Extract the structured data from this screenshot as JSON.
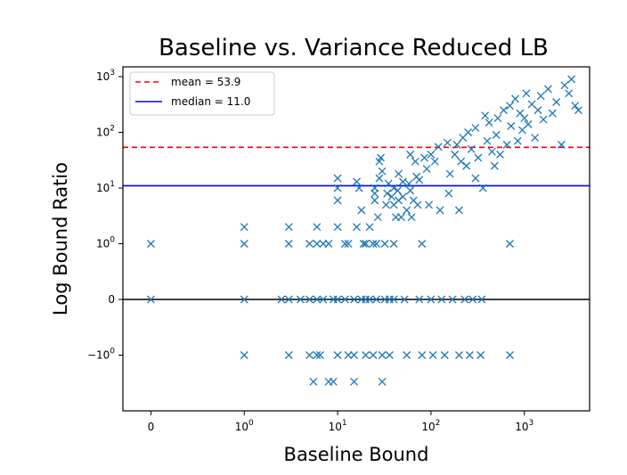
{
  "chart_data": {
    "type": "scatter",
    "title": "Baseline vs. Variance Reduced LB",
    "xlabel": "Baseline Bound",
    "ylabel": "Log Bound Ratio",
    "x_scale": "symlog",
    "y_scale": "symlog",
    "xlim": [
      -0.3,
      5000
    ],
    "ylim": [
      -10,
      1500
    ],
    "x_ticks": [
      {
        "value": 0,
        "label": "0"
      },
      {
        "value": 1,
        "label": "10",
        "exp": "0"
      },
      {
        "value": 10,
        "label": "10",
        "exp": "1"
      },
      {
        "value": 100,
        "label": "10",
        "exp": "2"
      },
      {
        "value": 1000,
        "label": "10",
        "exp": "3"
      }
    ],
    "y_ticks": [
      {
        "value": 1000,
        "label": "10",
        "exp": "3"
      },
      {
        "value": 100,
        "label": "10",
        "exp": "2"
      },
      {
        "value": 10,
        "label": "10",
        "exp": "1"
      },
      {
        "value": 1,
        "label": "10",
        "exp": "0"
      },
      {
        "value": 0,
        "label": "0"
      },
      {
        "value": -1,
        "label": "−10",
        "exp": "0"
      }
    ],
    "reference_lines": [
      {
        "name": "mean = 53.9",
        "value": 53.9,
        "color": "#ff0000",
        "style": "dashed"
      },
      {
        "name": "median = 11.0",
        "value": 11.0,
        "color": "#0000ff",
        "style": "solid"
      },
      {
        "name": "",
        "value": 0,
        "color": "#000000",
        "style": "solid"
      }
    ],
    "legend": {
      "position": "top-left",
      "entries": [
        "mean = 53.9",
        "median = 11.0"
      ]
    },
    "marker": {
      "shape": "x",
      "color": "#1f77b4"
    },
    "series": [
      {
        "points": [
          [
            0,
            1
          ],
          [
            0,
            0
          ],
          [
            1,
            2
          ],
          [
            1,
            1
          ],
          [
            1,
            0
          ],
          [
            1,
            -1
          ],
          [
            2.5,
            0
          ],
          [
            3,
            2
          ],
          [
            3,
            1
          ],
          [
            3,
            -1
          ],
          [
            3,
            0
          ],
          [
            4,
            0
          ],
          [
            5,
            1
          ],
          [
            5,
            0
          ],
          [
            5,
            -1
          ],
          [
            5.5,
            -3
          ],
          [
            6,
            2
          ],
          [
            6,
            1
          ],
          [
            6,
            0
          ],
          [
            6,
            -1
          ],
          [
            6.5,
            -1
          ],
          [
            7,
            1
          ],
          [
            7,
            0
          ],
          [
            8,
            1
          ],
          [
            8,
            -3
          ],
          [
            9,
            -3
          ],
          [
            9,
            0
          ],
          [
            10,
            -1
          ],
          [
            10,
            0
          ],
          [
            10,
            2
          ],
          [
            10,
            10
          ],
          [
            10,
            15
          ],
          [
            10,
            6
          ],
          [
            12,
            1
          ],
          [
            12,
            0
          ],
          [
            13,
            1
          ],
          [
            13,
            -1
          ],
          [
            15,
            0
          ],
          [
            15,
            -3
          ],
          [
            15,
            -1
          ],
          [
            16,
            2
          ],
          [
            16,
            13
          ],
          [
            17,
            10
          ],
          [
            18,
            0
          ],
          [
            18,
            4
          ],
          [
            19,
            1
          ],
          [
            20,
            0
          ],
          [
            20,
            -1
          ],
          [
            20,
            1
          ],
          [
            22,
            2
          ],
          [
            22,
            0
          ],
          [
            24,
            1
          ],
          [
            24,
            -1
          ],
          [
            25,
            8
          ],
          [
            25,
            6
          ],
          [
            25,
            10
          ],
          [
            26,
            1
          ],
          [
            26,
            0
          ],
          [
            27,
            3
          ],
          [
            28,
            15
          ],
          [
            28,
            30
          ],
          [
            29,
            35
          ],
          [
            30,
            -3
          ],
          [
            30,
            -1
          ],
          [
            30,
            20
          ],
          [
            32,
            1
          ],
          [
            32,
            0
          ],
          [
            33,
            5
          ],
          [
            34,
            8
          ],
          [
            35,
            12
          ],
          [
            36,
            -1
          ],
          [
            36,
            0
          ],
          [
            38,
            7
          ],
          [
            40,
            1
          ],
          [
            40,
            0
          ],
          [
            40,
            5
          ],
          [
            40,
            10
          ],
          [
            42,
            3
          ],
          [
            44,
            9
          ],
          [
            45,
            18
          ],
          [
            45,
            6
          ],
          [
            48,
            3
          ],
          [
            50,
            7
          ],
          [
            50,
            13
          ],
          [
            52,
            0
          ],
          [
            55,
            -1
          ],
          [
            55,
            4
          ],
          [
            58,
            12
          ],
          [
            60,
            9
          ],
          [
            60,
            40
          ],
          [
            62,
            3
          ],
          [
            65,
            6
          ],
          [
            68,
            30
          ],
          [
            70,
            16
          ],
          [
            72,
            5
          ],
          [
            75,
            14
          ],
          [
            75,
            0
          ],
          [
            80,
            -1
          ],
          [
            80,
            1
          ],
          [
            85,
            35
          ],
          [
            90,
            22
          ],
          [
            95,
            5
          ],
          [
            100,
            40
          ],
          [
            100,
            0
          ],
          [
            105,
            -1
          ],
          [
            110,
            30
          ],
          [
            120,
            55
          ],
          [
            125,
            4
          ],
          [
            130,
            0
          ],
          [
            140,
            -1
          ],
          [
            150,
            65
          ],
          [
            155,
            8
          ],
          [
            160,
            18
          ],
          [
            170,
            0
          ],
          [
            180,
            40
          ],
          [
            190,
            60
          ],
          [
            200,
            -1
          ],
          [
            200,
            4
          ],
          [
            210,
            30
          ],
          [
            220,
            80
          ],
          [
            230,
            0
          ],
          [
            240,
            25
          ],
          [
            250,
            100
          ],
          [
            260,
            -1
          ],
          [
            270,
            50
          ],
          [
            280,
            0
          ],
          [
            300,
            15
          ],
          [
            300,
            120
          ],
          [
            320,
            35
          ],
          [
            340,
            -1
          ],
          [
            350,
            0
          ],
          [
            360,
            10
          ],
          [
            380,
            200
          ],
          [
            400,
            70
          ],
          [
            420,
            150
          ],
          [
            450,
            45
          ],
          [
            480,
            25
          ],
          [
            500,
            90
          ],
          [
            520,
            180
          ],
          [
            550,
            40
          ],
          [
            600,
            250
          ],
          [
            650,
            60
          ],
          [
            700,
            300
          ],
          [
            700,
            1
          ],
          [
            700,
            -1
          ],
          [
            720,
            130
          ],
          [
            800,
            400
          ],
          [
            850,
            70
          ],
          [
            900,
            220
          ],
          [
            950,
            110
          ],
          [
            1000,
            180
          ],
          [
            1050,
            500
          ],
          [
            1100,
            140
          ],
          [
            1200,
            320
          ],
          [
            1300,
            80
          ],
          [
            1400,
            250
          ],
          [
            1500,
            450
          ],
          [
            1600,
            170
          ],
          [
            1800,
            600
          ],
          [
            2000,
            220
          ],
          [
            2200,
            350
          ],
          [
            2500,
            60
          ],
          [
            2700,
            700
          ],
          [
            3000,
            500
          ],
          [
            3200,
            900
          ],
          [
            3500,
            300
          ],
          [
            3800,
            250
          ]
        ]
      }
    ]
  }
}
